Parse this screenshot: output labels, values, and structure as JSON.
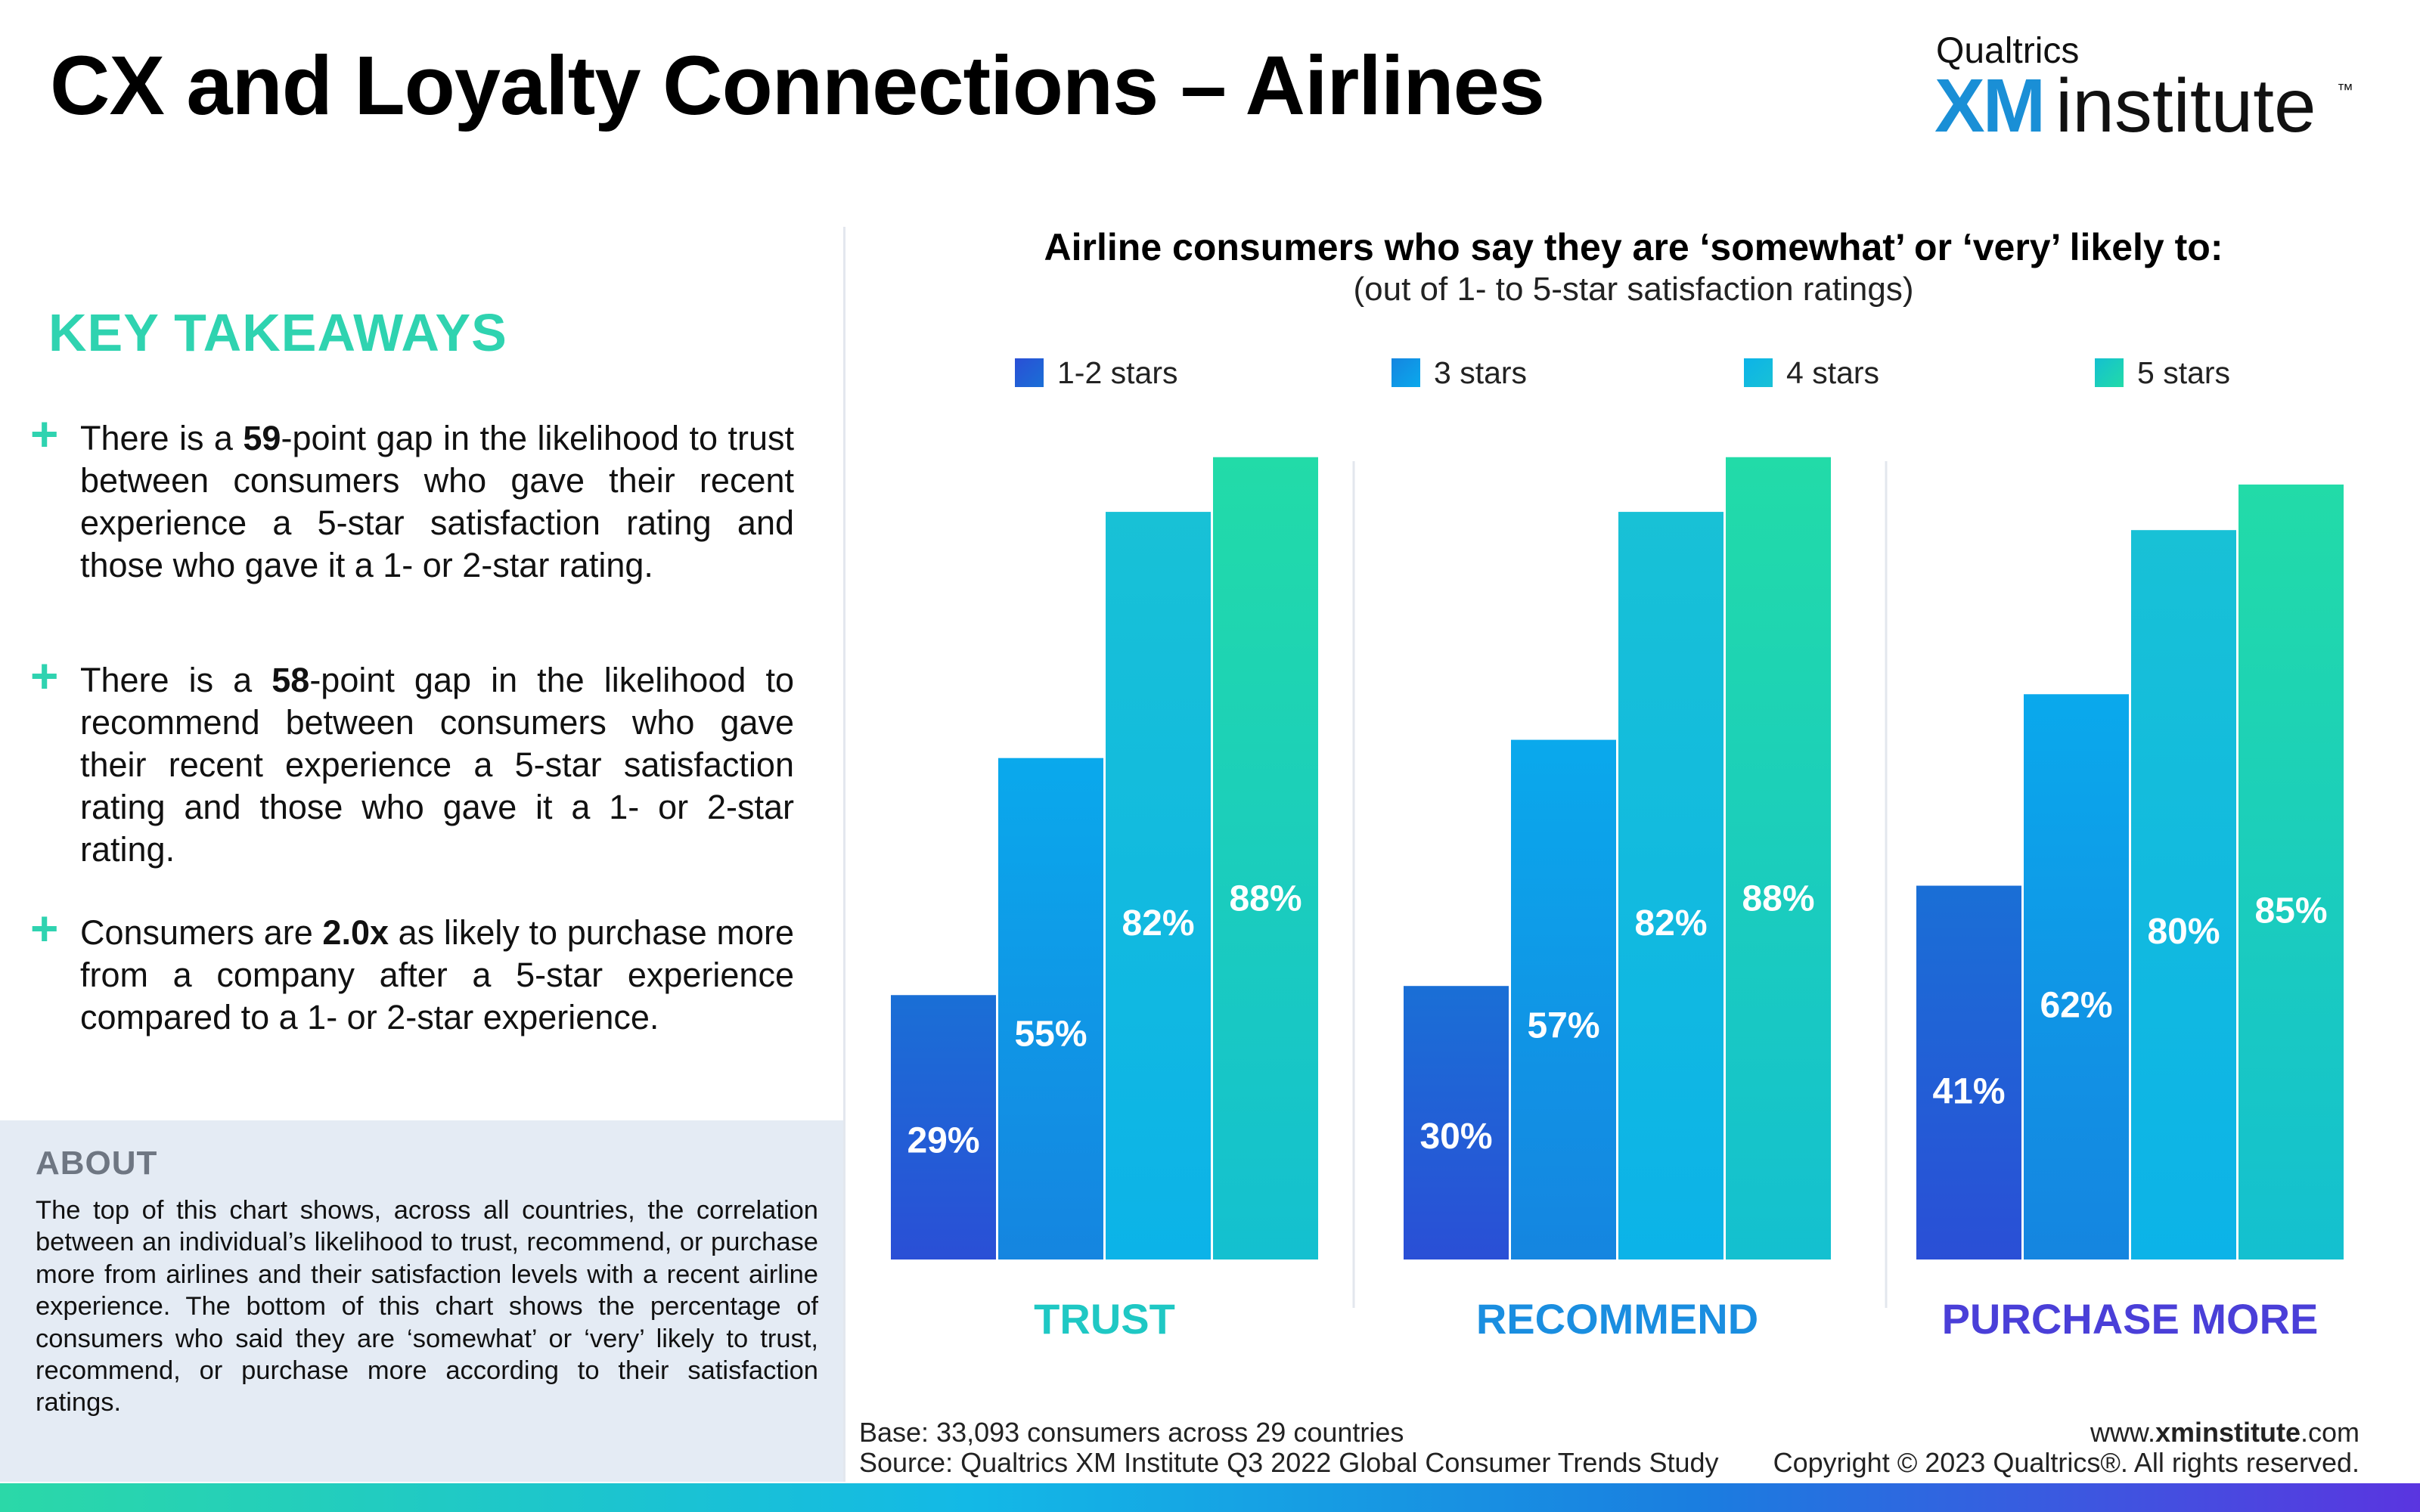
{
  "header": {
    "title": "CX and Loyalty Connections – Airlines"
  },
  "logo": {
    "brand": "Qualtrics",
    "xm": "XM",
    "institute": "institute",
    "tm": "™"
  },
  "takeaways": {
    "heading": "KEY TAKEAWAYS",
    "items": [
      {
        "pre": "There is a ",
        "bold": "59",
        "post": "-point gap in the likelihood to trust between consumers who gave their recent experience a 5-star satisfaction rating and those who gave it a 1- or 2-star rating."
      },
      {
        "pre": "There is a  ",
        "bold": "58",
        "post": "-point gap in the likelihood to recommend between consumers who gave their recent experience a 5-star satisfaction rating and those who gave it a 1- or 2-star rating."
      },
      {
        "pre": "Consumers are ",
        "bold": "2.0x",
        "post": " as likely to purchase more from a company after a 5-star experience compared to a 1- or 2-star experience."
      }
    ]
  },
  "about": {
    "heading": "ABOUT",
    "text": "The top of this chart shows, across all countries, the correlation between an individual’s likelihood to trust, recommend, or purchase more from airlines and their satisfaction levels with a recent airline experience. The bottom of this chart shows the percentage of consumers who said they are ‘somewhat’ or ‘very’ likely to trust, recommend, or purchase more according to their satisfaction ratings."
  },
  "footer": {
    "base": "Base: 33,093 consumers across 29 countries",
    "source": "Source: Qualtrics XM Institute Q3 2022 Global Consumer Trends Study",
    "url_prefix": "www.",
    "url_bold": "xminstitute",
    "url_suffix": ".com",
    "copyright": "Copyright © 2023 Qualtrics®. All rights reserved."
  },
  "chart_data": {
    "type": "bar",
    "title": "Airline consumers who say they are ‘somewhat’ or ‘very’ likely to:",
    "subtitle": "(out of 1- to 5-star satisfaction ratings)",
    "categories": [
      "TRUST",
      "RECOMMEND",
      "PURCHASE MORE"
    ],
    "category_colors": [
      "#1fc8c4",
      "#1a8ee0",
      "#4a3fd8"
    ],
    "series": [
      {
        "name": "1-2 stars",
        "values": [
          29,
          30,
          41
        ],
        "labels": [
          "29%",
          "30%",
          "41%"
        ],
        "color_top": "#1a6fd6",
        "color_bottom": "#2a4fd6"
      },
      {
        "name": "3 stars",
        "values": [
          55,
          57,
          62
        ],
        "labels": [
          "55%",
          "57%",
          "62%"
        ],
        "color_top": "#0aa9ec",
        "color_bottom": "#1585e0"
      },
      {
        "name": "4 stars",
        "values": [
          82,
          82,
          80
        ],
        "labels": [
          "82%",
          "82%",
          "80%"
        ],
        "color_top": "#18c1d6",
        "color_bottom": "#0cb3e8"
      },
      {
        "name": "5 stars",
        "values": [
          88,
          88,
          85
        ],
        "labels": [
          "88%",
          "88%",
          "85%"
        ],
        "color_top": "#22dba8",
        "color_bottom": "#14c0d0"
      }
    ],
    "ylim": [
      0,
      100
    ],
    "grid": false,
    "legend_position": "top"
  }
}
